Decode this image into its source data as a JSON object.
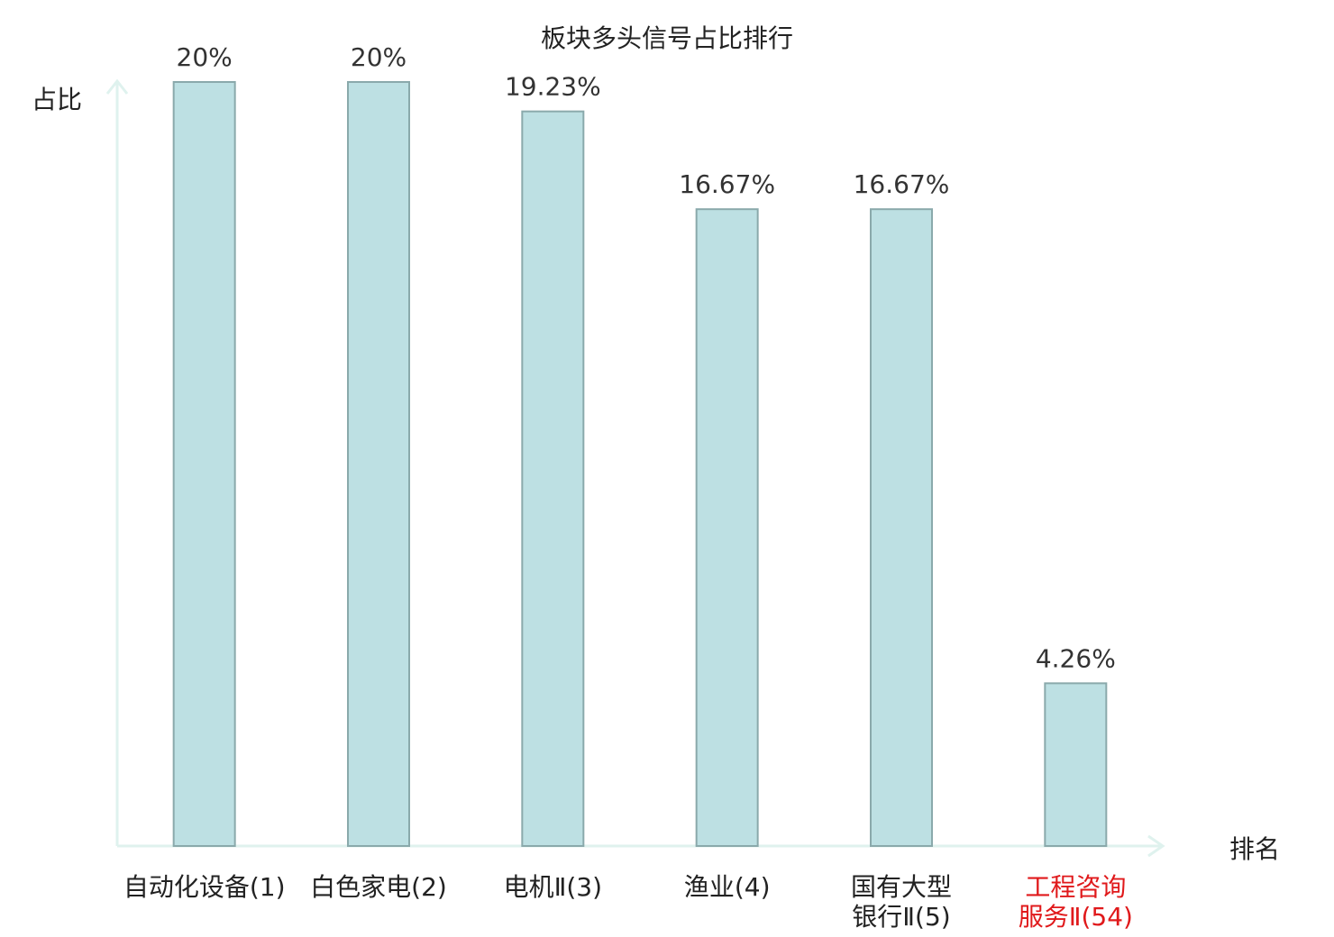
{
  "chart_data": {
    "type": "bar",
    "title": "板块多头信号占比排行",
    "y_label": "占比",
    "x_label": "排名",
    "categories": [
      "自动化设备(1)",
      "白色家电(2)",
      "电机Ⅱ(3)",
      "渔业(4)",
      "国有大型银行Ⅱ(5)",
      "工程咨询服务Ⅱ(54)"
    ],
    "category_colors": [
      "#222222",
      "#222222",
      "#222222",
      "#222222",
      "#222222",
      "#e0191b"
    ],
    "values": [
      20,
      20,
      19.23,
      16.67,
      16.67,
      4.26
    ],
    "value_labels": [
      "20%",
      "20%",
      "19.23%",
      "16.67%",
      "16.67%",
      "4.26%"
    ],
    "color": "#bde0e3",
    "edge_color": "#8aa9ab",
    "ylim": [
      0,
      20
    ]
  }
}
